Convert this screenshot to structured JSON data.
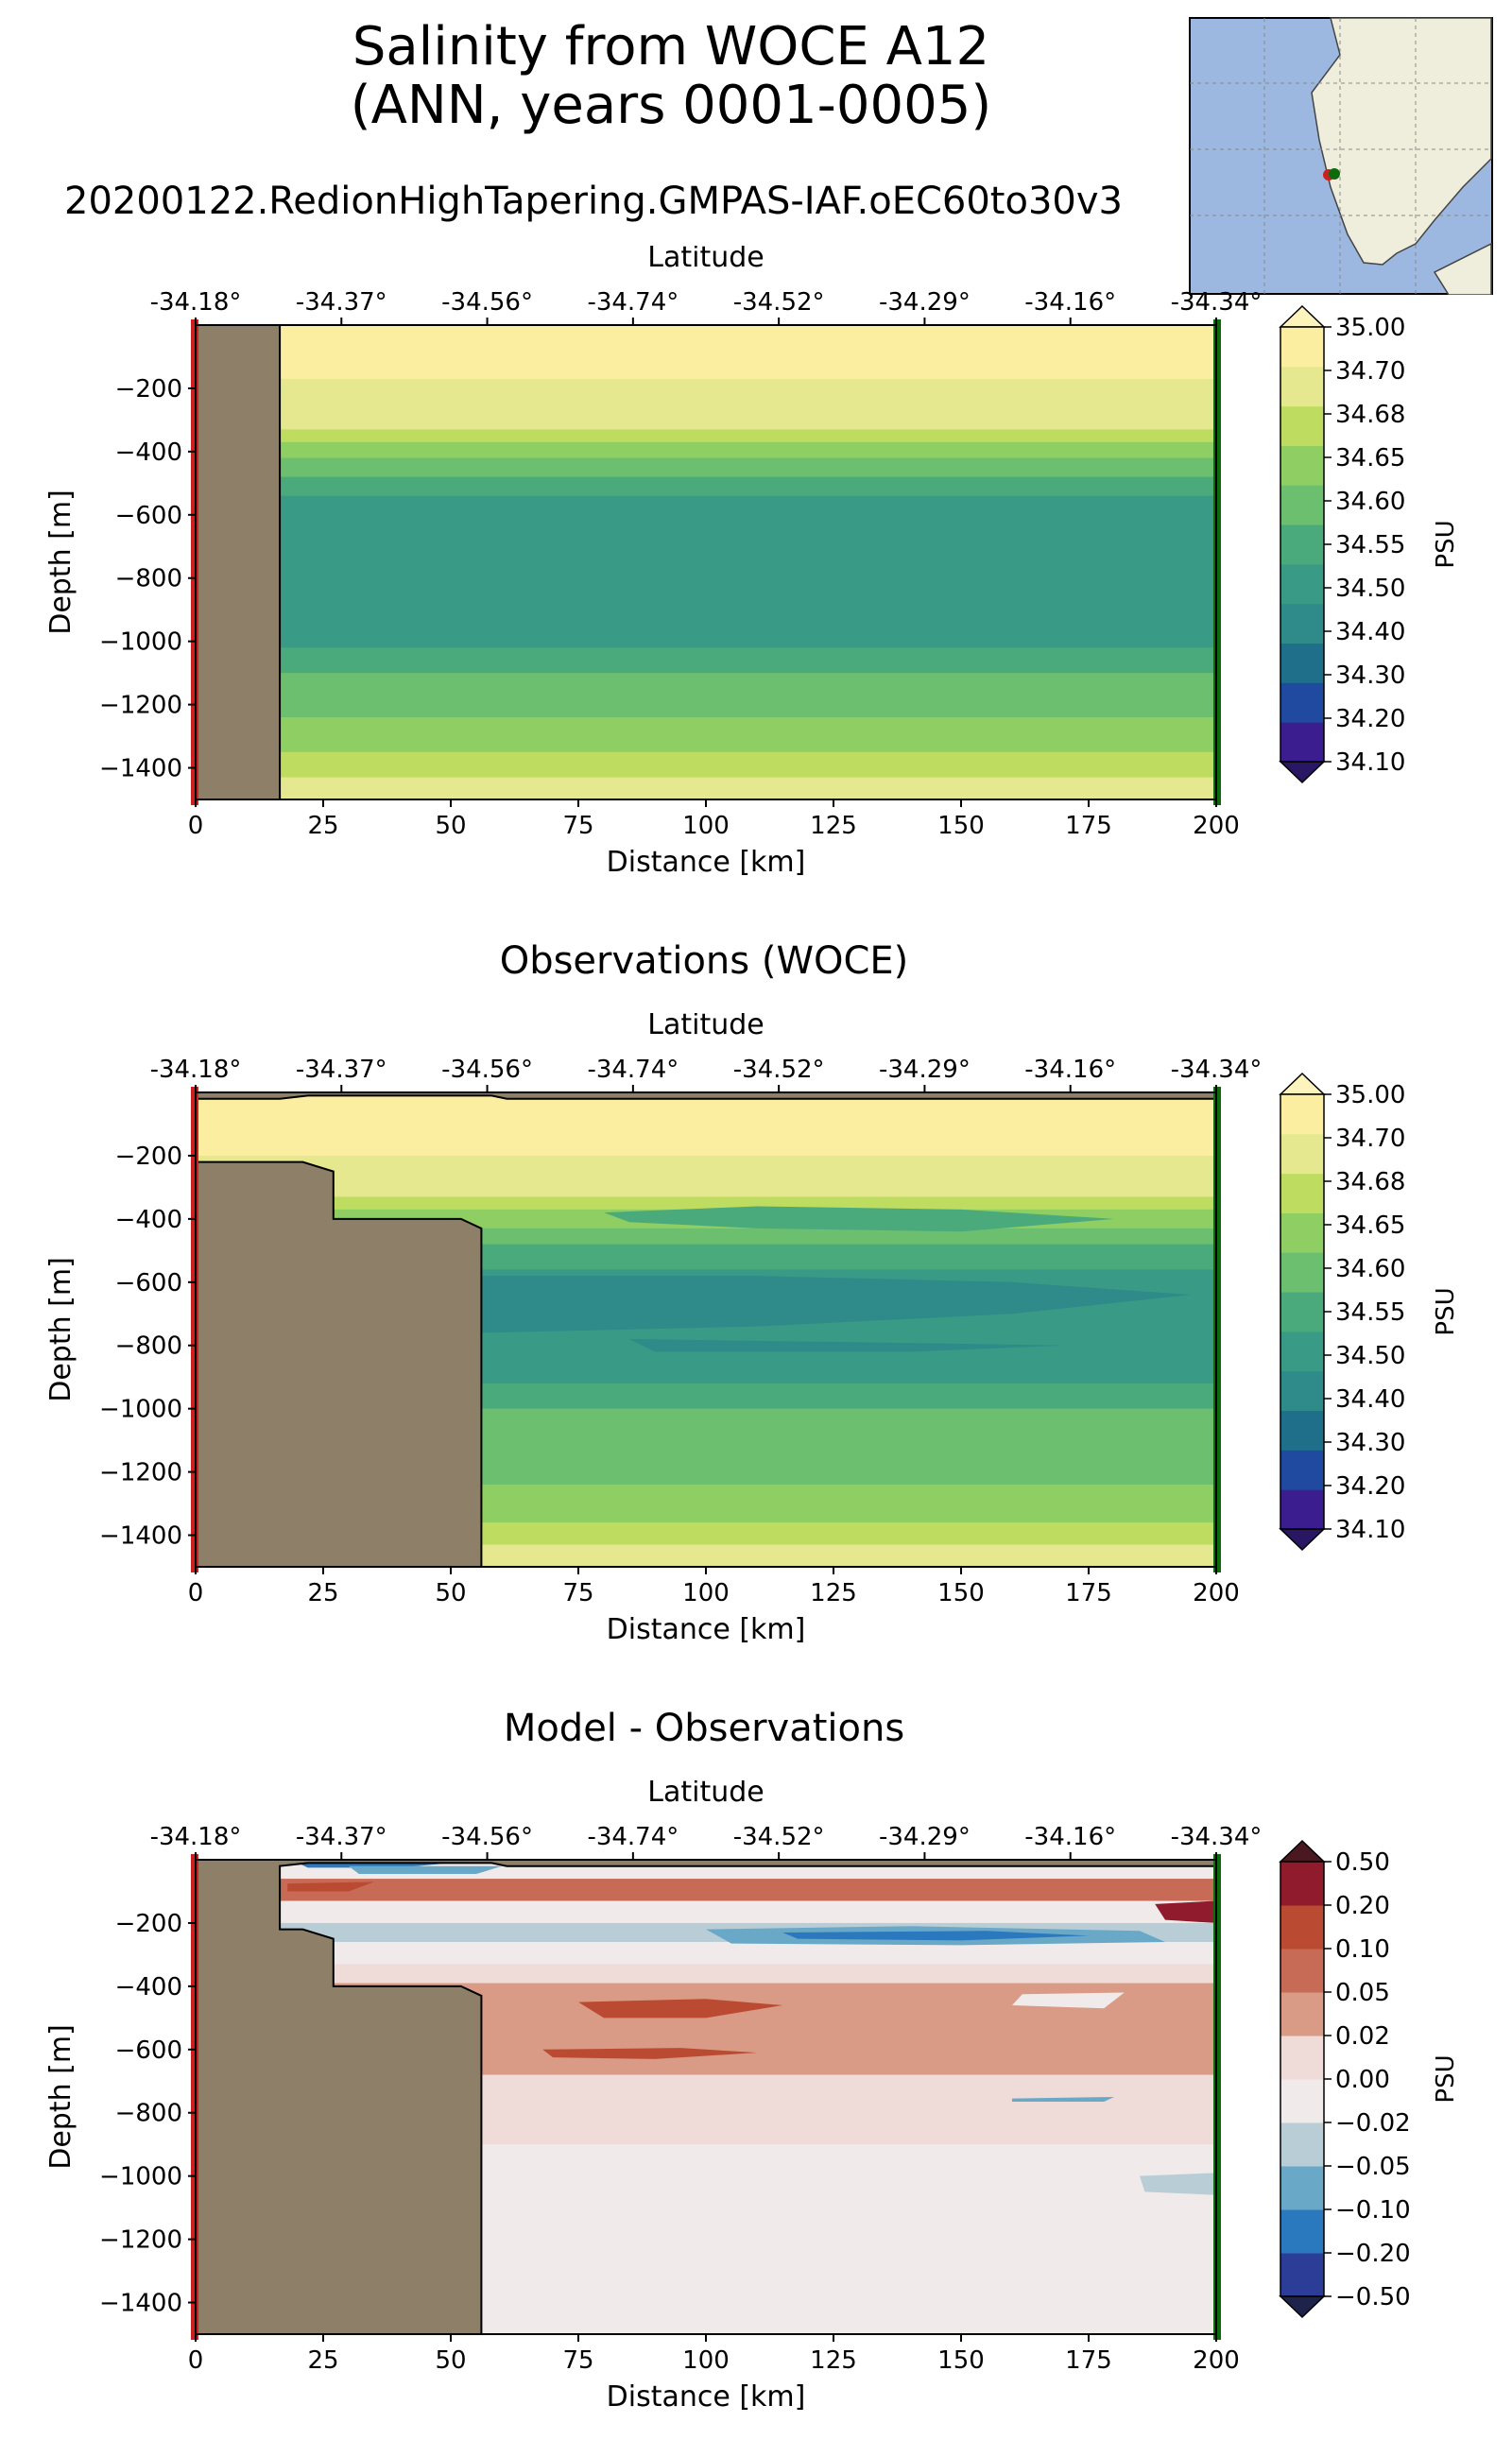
{
  "figure": {
    "title_line1": "Salinity from WOCE A12",
    "title_line2": "(ANN, years 0001-0005)",
    "subtitle": "20200122.RedionHighTapering.GMPAS-IAF.oEC60to30v3",
    "panel_titles": [
      "",
      "Observations (WOCE)",
      "Model - Observations"
    ]
  },
  "colors": {
    "land": "#8e7f68",
    "start_marker": "#cc1f1f",
    "end_marker": "#0d6b0d",
    "map_ocean": "#9cb8e0",
    "map_land": "#efeedd"
  },
  "colorbars": {
    "salinity": {
      "label": "PSU",
      "ticks": [
        "34.10",
        "34.20",
        "34.30",
        "34.40",
        "34.50",
        "34.55",
        "34.60",
        "34.65",
        "34.68",
        "34.70",
        "35.00"
      ],
      "colors": [
        "#3b1d8f",
        "#1f4aa0",
        "#1f6f8b",
        "#2f8a8a",
        "#399a86",
        "#4aaa7c",
        "#6bbf6f",
        "#8fce62",
        "#bedc60",
        "#e5e88f",
        "#fbeea0"
      ],
      "under_color": "#2a1764",
      "over_color": "#fdf3bd"
    },
    "bias": {
      "label": "PSU",
      "ticks": [
        "−0.50",
        "−0.20",
        "−0.10",
        "−0.05",
        "−0.02",
        "0.00",
        "0.02",
        "0.05",
        "0.10",
        "0.20",
        "0.50"
      ],
      "colors": [
        "#2c3d98",
        "#2a78bd",
        "#6aa8c8",
        "#b8cdd6",
        "#f0eaea",
        "#efdcd8",
        "#d99a86",
        "#c86b56",
        "#bb4a32",
        "#8f1b2c"
      ],
      "under_color": "#1d234a",
      "over_color": "#4a1820"
    }
  },
  "chart_data": [
    {
      "type": "heatmap",
      "title": "",
      "xlabel": "Distance [km]",
      "ylabel": "Depth [m]",
      "top_xlabel": "Latitude",
      "xlim": [
        0,
        200
      ],
      "ylim": [
        -1500,
        0
      ],
      "x_ticks": [
        0,
        25,
        50,
        75,
        100,
        125,
        150,
        175,
        200
      ],
      "y_ticks": [
        -200,
        -400,
        -600,
        -800,
        -1000,
        -1200,
        -1400
      ],
      "lat_ticks": [
        "-34.18°",
        "-34.37°",
        "-34.56°",
        "-34.74°",
        "-34.52°",
        "-34.29°",
        "-34.16°",
        "-34.34°"
      ],
      "colorbar": "salinity",
      "land_polygon": [
        [
          0,
          0
        ],
        [
          16.5,
          0
        ],
        [
          16.5,
          -1500
        ],
        [
          0,
          -1500
        ]
      ],
      "layers": [
        {
          "top": 0,
          "bottom": -170,
          "color_index": 10
        },
        {
          "top": -170,
          "bottom": -330,
          "color_index": 9
        },
        {
          "top": -330,
          "bottom": -370,
          "color_index": 8
        },
        {
          "top": -370,
          "bottom": -420,
          "color_index": 7
        },
        {
          "top": -420,
          "bottom": -480,
          "color_index": 6
        },
        {
          "top": -480,
          "bottom": -540,
          "color_index": 5
        },
        {
          "top": -540,
          "bottom": -1020,
          "color_index": 4
        },
        {
          "top": -1020,
          "bottom": -1100,
          "color_index": 5
        },
        {
          "top": -1100,
          "bottom": -1240,
          "color_index": 6
        },
        {
          "top": -1240,
          "bottom": -1350,
          "color_index": 7
        },
        {
          "top": -1350,
          "bottom": -1430,
          "color_index": 8
        },
        {
          "top": -1430,
          "bottom": -1500,
          "color_index": 9
        }
      ],
      "blobs": []
    },
    {
      "type": "heatmap",
      "title": "Observations (WOCE)",
      "xlabel": "Distance [km]",
      "ylabel": "Depth [m]",
      "top_xlabel": "Latitude",
      "xlim": [
        0,
        200
      ],
      "ylim": [
        -1500,
        0
      ],
      "x_ticks": [
        0,
        25,
        50,
        75,
        100,
        125,
        150,
        175,
        200
      ],
      "y_ticks": [
        -200,
        -400,
        -600,
        -800,
        -1000,
        -1200,
        -1400
      ],
      "lat_ticks": [
        "-34.18°",
        "-34.37°",
        "-34.56°",
        "-34.74°",
        "-34.52°",
        "-34.29°",
        "-34.16°",
        "-34.34°"
      ],
      "colorbar": "salinity",
      "land_polygon": [
        [
          0,
          0
        ],
        [
          200,
          0
        ],
        [
          200,
          -20
        ],
        [
          61,
          -20
        ],
        [
          58,
          -10
        ],
        [
          22,
          -10
        ],
        [
          16.5,
          -20
        ],
        [
          0,
          -20
        ],
        [
          0,
          -220
        ],
        [
          21,
          -220
        ],
        [
          27,
          -250
        ],
        [
          27,
          -400
        ],
        [
          52,
          -400
        ],
        [
          56,
          -430
        ],
        [
          56,
          -1500
        ],
        [
          0,
          -1500
        ]
      ],
      "layers": [
        {
          "top": 0,
          "bottom": -200,
          "color_index": 10
        },
        {
          "top": -200,
          "bottom": -330,
          "color_index": 9
        },
        {
          "top": -330,
          "bottom": -370,
          "color_index": 8
        },
        {
          "top": -370,
          "bottom": -430,
          "color_index": 7
        },
        {
          "top": -430,
          "bottom": -480,
          "color_index": 6
        },
        {
          "top": -480,
          "bottom": -560,
          "color_index": 5
        },
        {
          "top": -560,
          "bottom": -920,
          "color_index": 4
        },
        {
          "top": -920,
          "bottom": -1000,
          "color_index": 5
        },
        {
          "top": -1000,
          "bottom": -1160,
          "color_index": 6
        },
        {
          "top": -1160,
          "bottom": -1240,
          "color_index": 6
        },
        {
          "top": -1240,
          "bottom": -1360,
          "color_index": 7
        },
        {
          "top": -1360,
          "bottom": -1430,
          "color_index": 8
        },
        {
          "top": -1430,
          "bottom": -1500,
          "color_index": 9
        }
      ],
      "blobs": [
        {
          "color_index": 3,
          "points": [
            [
              56,
              -580
            ],
            [
              110,
              -580
            ],
            [
              160,
              -600
            ],
            [
              195,
              -640
            ],
            [
              160,
              -700
            ],
            [
              110,
              -740
            ],
            [
              56,
              -760
            ]
          ]
        },
        {
          "color_index": 3,
          "points": [
            [
              85,
              -780
            ],
            [
              130,
              -790
            ],
            [
              170,
              -800
            ],
            [
              140,
              -820
            ],
            [
              90,
              -820
            ]
          ]
        },
        {
          "color_index": 5,
          "points": [
            [
              80,
              -380
            ],
            [
              110,
              -360
            ],
            [
              150,
              -370
            ],
            [
              180,
              -400
            ],
            [
              150,
              -440
            ],
            [
              110,
              -430
            ],
            [
              85,
              -410
            ]
          ]
        }
      ]
    },
    {
      "type": "heatmap",
      "title": "Model - Observations",
      "xlabel": "Distance [km]",
      "ylabel": "Depth [m]",
      "top_xlabel": "Latitude",
      "xlim": [
        0,
        200
      ],
      "ylim": [
        -1500,
        0
      ],
      "x_ticks": [
        0,
        25,
        50,
        75,
        100,
        125,
        150,
        175,
        200
      ],
      "y_ticks": [
        -200,
        -400,
        -600,
        -800,
        -1000,
        -1200,
        -1400
      ],
      "lat_ticks": [
        "-34.18°",
        "-34.37°",
        "-34.56°",
        "-34.74°",
        "-34.52°",
        "-34.29°",
        "-34.16°",
        "-34.34°"
      ],
      "colorbar": "bias",
      "land_polygon": [
        [
          0,
          0
        ],
        [
          200,
          0
        ],
        [
          200,
          -20
        ],
        [
          61,
          -20
        ],
        [
          58,
          -10
        ],
        [
          22,
          -10
        ],
        [
          16.5,
          -20
        ],
        [
          16.5,
          -220
        ],
        [
          21,
          -220
        ],
        [
          27,
          -250
        ],
        [
          27,
          -400
        ],
        [
          52,
          -400
        ],
        [
          56,
          -430
        ],
        [
          56,
          -1500
        ],
        [
          0,
          -1500
        ]
      ],
      "layers": [
        {
          "top": 0,
          "bottom": -60,
          "color_index": 4
        },
        {
          "top": -60,
          "bottom": -130,
          "color_index": 7
        },
        {
          "top": -130,
          "bottom": -200,
          "color_index": 4
        },
        {
          "top": -200,
          "bottom": -260,
          "color_index": 3
        },
        {
          "top": -260,
          "bottom": -330,
          "color_index": 4
        },
        {
          "top": -330,
          "bottom": -390,
          "color_index": 5
        },
        {
          "top": -390,
          "bottom": -680,
          "color_index": 6
        },
        {
          "top": -680,
          "bottom": -740,
          "color_index": 5
        },
        {
          "top": -740,
          "bottom": -900,
          "color_index": 5
        },
        {
          "top": -900,
          "bottom": -1500,
          "color_index": 4
        }
      ],
      "blobs": [
        {
          "color_index": 1,
          "points": [
            [
              20,
              -10
            ],
            [
              35,
              -5
            ],
            [
              50,
              -10
            ],
            [
              40,
              -25
            ],
            [
              22,
              -25
            ]
          ]
        },
        {
          "color_index": 2,
          "points": [
            [
              30,
              -20
            ],
            [
              60,
              -20
            ],
            [
              55,
              -45
            ],
            [
              32,
              -45
            ]
          ]
        },
        {
          "color_index": 8,
          "points": [
            [
              18,
              -75
            ],
            [
              35,
              -70
            ],
            [
              30,
              -100
            ],
            [
              18,
              -100
            ]
          ]
        },
        {
          "color_index": 9,
          "points": [
            [
              188,
              -140
            ],
            [
              200,
              -130
            ],
            [
              200,
              -200
            ],
            [
              190,
              -190
            ]
          ]
        },
        {
          "color_index": 2,
          "points": [
            [
              100,
              -220
            ],
            [
              140,
              -210
            ],
            [
              185,
              -225
            ],
            [
              190,
              -260
            ],
            [
              150,
              -270
            ],
            [
              105,
              -265
            ]
          ]
        },
        {
          "color_index": 1,
          "points": [
            [
              115,
              -230
            ],
            [
              155,
              -225
            ],
            [
              175,
              -240
            ],
            [
              150,
              -255
            ],
            [
              118,
              -250
            ]
          ]
        },
        {
          "color_index": 3,
          "points": [
            [
              55,
              -215
            ],
            [
              90,
              -215
            ],
            [
              85,
              -250
            ],
            [
              58,
              -255
            ]
          ]
        },
        {
          "color_index": 8,
          "points": [
            [
              75,
              -450
            ],
            [
              100,
              -440
            ],
            [
              115,
              -460
            ],
            [
              100,
              -500
            ],
            [
              80,
              -500
            ]
          ]
        },
        {
          "color_index": 8,
          "points": [
            [
              68,
              -600
            ],
            [
              95,
              -595
            ],
            [
              110,
              -610
            ],
            [
              90,
              -630
            ],
            [
              70,
              -625
            ]
          ]
        },
        {
          "color_index": 4,
          "points": [
            [
              162,
              -425
            ],
            [
              182,
              -420
            ],
            [
              178,
              -470
            ],
            [
              160,
              -460
            ]
          ]
        },
        {
          "color_index": 3,
          "points": [
            [
              185,
              -1000
            ],
            [
              200,
              -990
            ],
            [
              200,
              -1060
            ],
            [
              186,
              -1050
            ]
          ]
        },
        {
          "color_index": 2,
          "points": [
            [
              160,
              -755
            ],
            [
              180,
              -750
            ],
            [
              178,
              -765
            ],
            [
              160,
              -765
            ]
          ]
        }
      ]
    }
  ],
  "inset_map": {
    "description_free": true,
    "section_start_color": "#cc1f1f",
    "section_end_color": "#0d6b0d"
  }
}
